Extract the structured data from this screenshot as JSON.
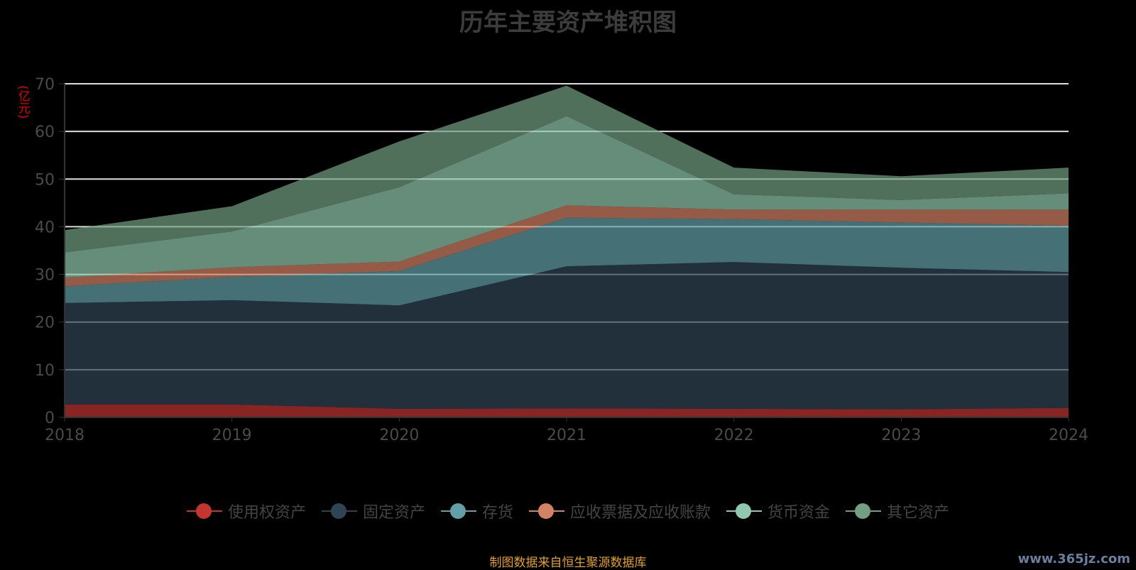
{
  "chart_data": {
    "type": "area",
    "stacked": true,
    "title": "历年主要资产堆积图",
    "ylabel": "(亿元)",
    "xlabel": "",
    "ylim": [
      0,
      70
    ],
    "yticks": [
      "0",
      "10",
      "20",
      "30",
      "40",
      "50",
      "60",
      "70"
    ],
    "categories": [
      "2018",
      "2019",
      "2020",
      "2021",
      "2022",
      "2023",
      "2024"
    ],
    "legend_position": "bottom",
    "series": [
      {
        "name": "使用权资产",
        "color": "#c23531",
        "values": [
          2.7,
          2.7,
          1.8,
          1.9,
          1.8,
          1.7,
          2.0
        ]
      },
      {
        "name": "固定资产",
        "color": "#2f4554",
        "values": [
          21.3,
          21.9,
          21.7,
          29.8,
          30.8,
          29.7,
          28.5
        ]
      },
      {
        "name": "存货",
        "color": "#61a0a8",
        "values": [
          3.5,
          4.9,
          7.2,
          10.2,
          9.0,
          9.5,
          9.7
        ]
      },
      {
        "name": "应收票据及应收账款",
        "color": "#d48265",
        "values": [
          1.8,
          2.0,
          2.0,
          2.6,
          2.0,
          2.7,
          3.4
        ]
      },
      {
        "name": "货币资金",
        "color": "#91c7ae",
        "values": [
          5.3,
          7.5,
          15.6,
          18.7,
          3.2,
          2.0,
          3.4
        ]
      },
      {
        "name": "其它资产",
        "color": "#749f83",
        "values": [
          4.7,
          5.3,
          9.6,
          6.4,
          5.6,
          5.0,
          5.4
        ]
      }
    ]
  },
  "footer": "制图数据来自恒生聚源数据库",
  "watermark": "www.365jz.com"
}
